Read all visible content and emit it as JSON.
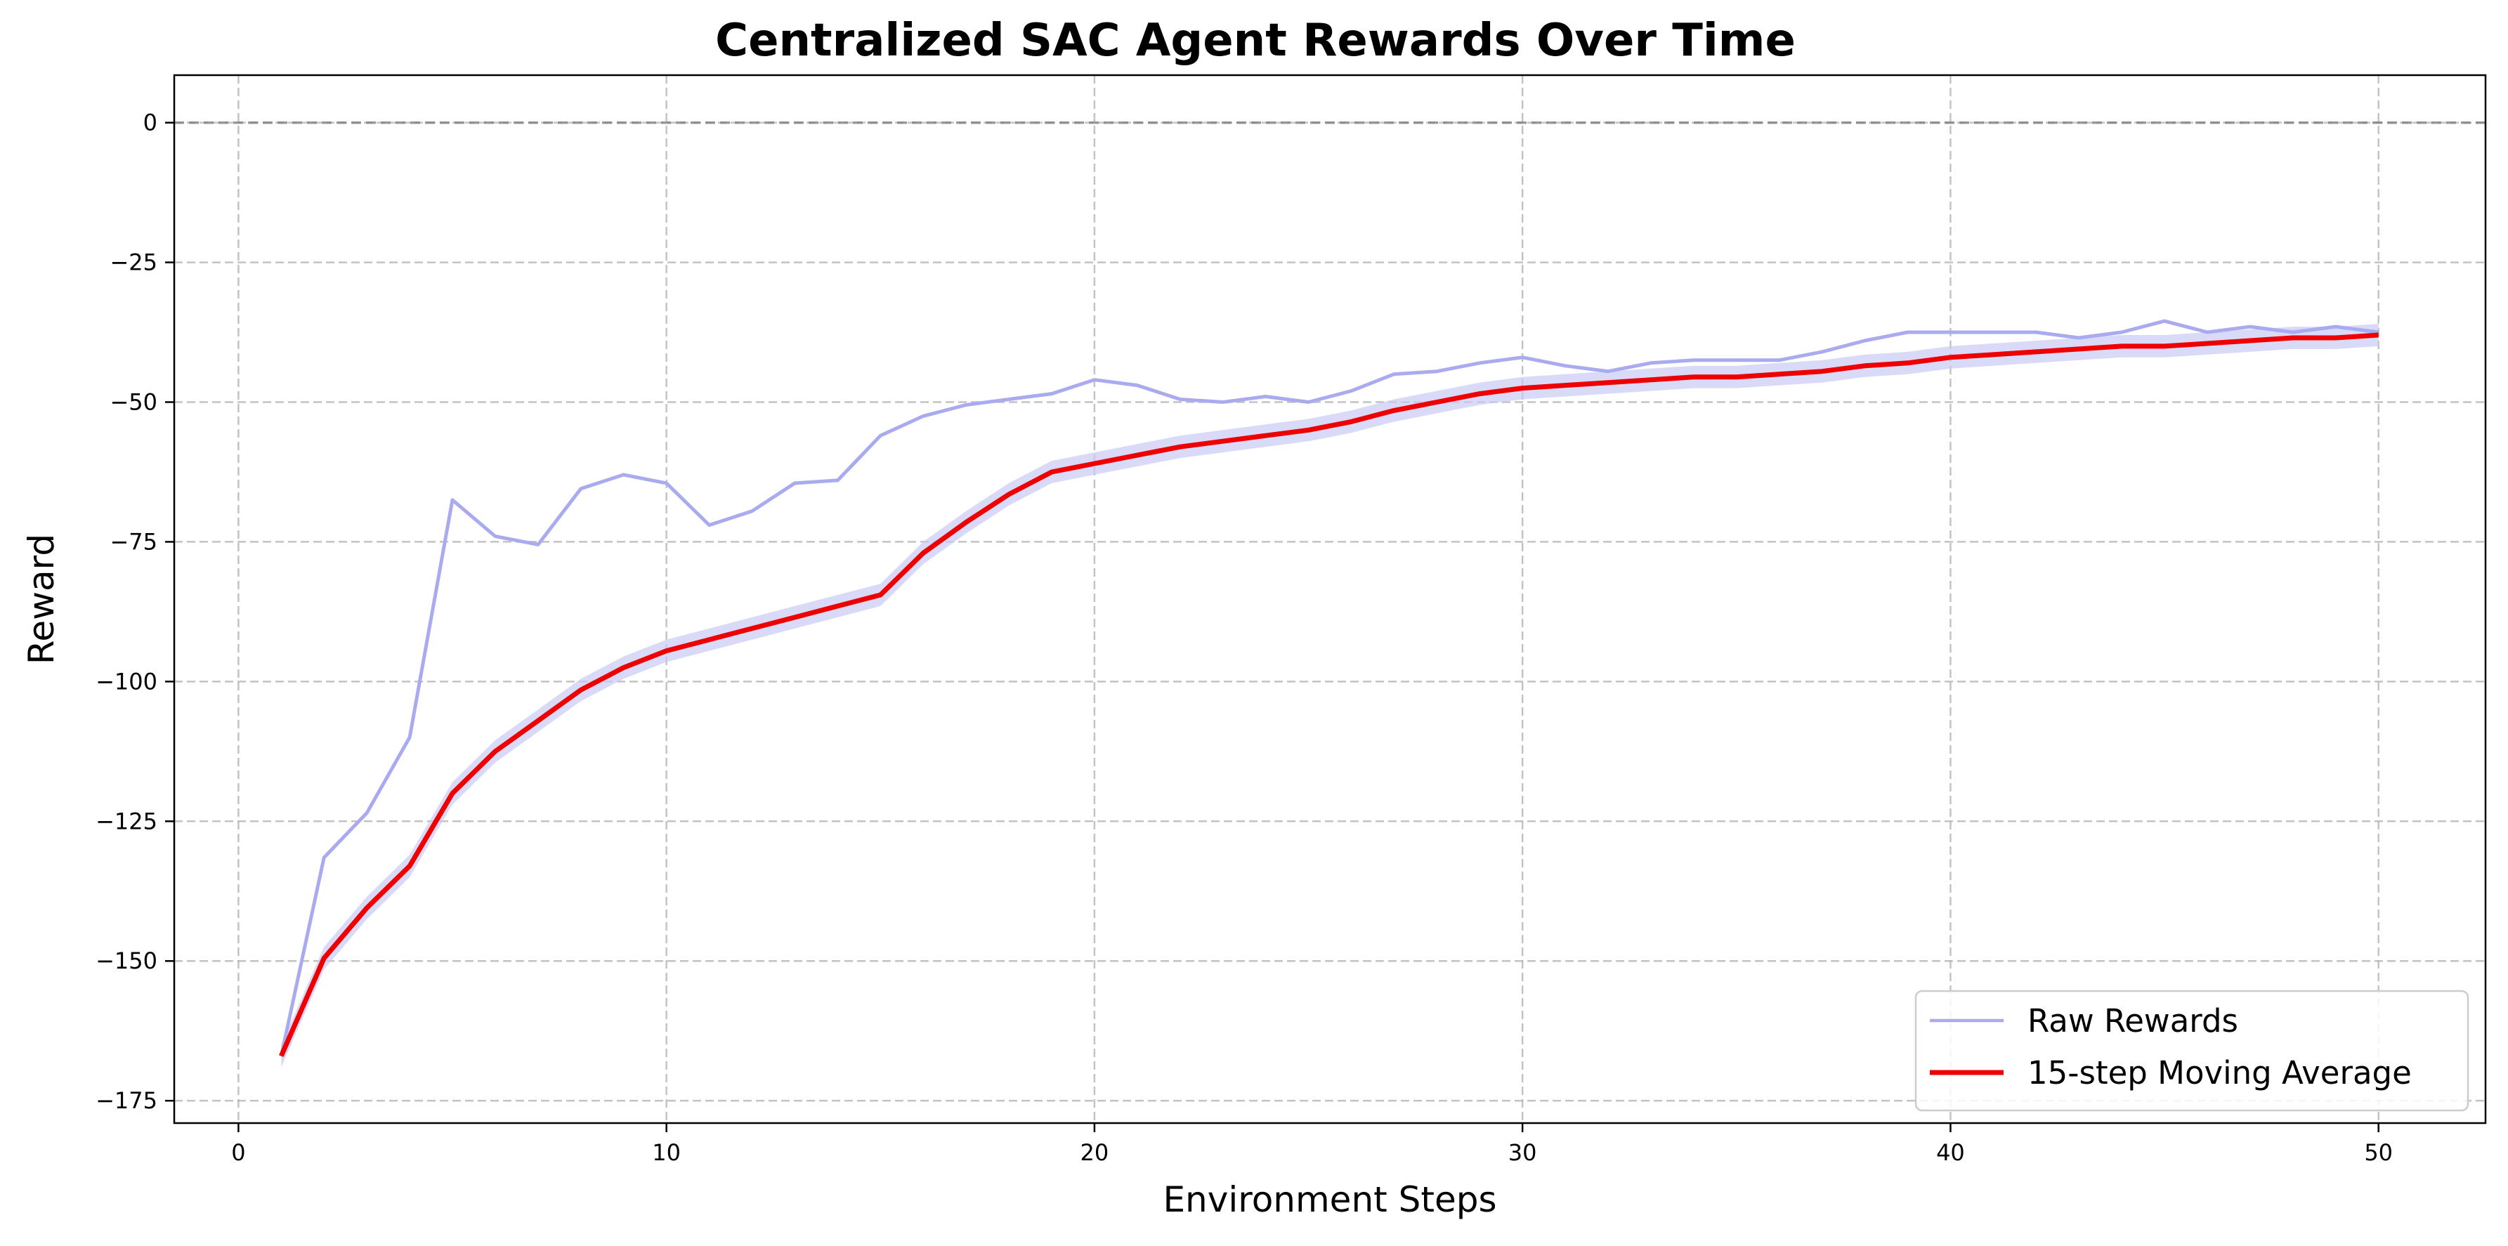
{
  "chart_data": {
    "type": "line",
    "title": "Centralized SAC Agent Rewards Over Time",
    "xlabel": "Environment Steps",
    "ylabel": "Reward",
    "xlim": [
      -1.5,
      52.5
    ],
    "ylim": [
      -179,
      8.5
    ],
    "xticks": [
      0,
      10,
      20,
      30,
      40,
      50
    ],
    "yticks": [
      0,
      -25,
      -50,
      -75,
      -100,
      -125,
      -150,
      -175
    ],
    "ytick_labels": [
      "0",
      "−25",
      "−50",
      "−75",
      "−100",
      "−125",
      "−150",
      "−175"
    ],
    "grid": true,
    "reference_line": {
      "y": 0,
      "style": "dashed",
      "color": "#808080"
    },
    "legend_position": "lower right",
    "x": [
      1,
      2,
      3,
      4,
      5,
      6,
      7,
      8,
      9,
      10,
      11,
      12,
      13,
      14,
      15,
      16,
      17,
      18,
      19,
      20,
      21,
      22,
      23,
      24,
      25,
      26,
      27,
      28,
      29,
      30,
      31,
      32,
      33,
      34,
      35,
      36,
      37,
      38,
      39,
      40,
      41,
      42,
      43,
      44,
      45,
      46,
      47,
      48,
      49,
      50
    ],
    "series": [
      {
        "name": "Raw Rewards",
        "color": "#aaaaf0",
        "values": [
          -167,
          -131.5,
          -123.5,
          -110,
          -67.5,
          -74,
          -75.5,
          -65.5,
          -63,
          -64.5,
          -72,
          -69.5,
          -64.5,
          -64,
          -56,
          -52.5,
          -50.5,
          -49.5,
          -48.5,
          -46,
          -47,
          -49.5,
          -50,
          -49,
          -50,
          -48,
          -45,
          -44.5,
          -43,
          -42,
          -43.5,
          -44.5,
          -43,
          -42.5,
          -42.5,
          -42.5,
          -41,
          -39,
          -37.5,
          -37.5,
          -37.5,
          -37.5,
          -38.5,
          -37.5,
          -35.5,
          -37.5,
          -36.5,
          -37.5,
          -36.5,
          -37.5
        ]
      },
      {
        "name": "15-step Moving Average",
        "color": "#ee0000",
        "values": [
          -167,
          -149.5,
          -140.5,
          -133,
          -120,
          -112.5,
          -107,
          -101.5,
          -97.5,
          -94.5,
          -92.5,
          -90.5,
          -88.5,
          -86.5,
          -84.5,
          -77,
          -71.5,
          -66.5,
          -62.5,
          -61,
          -59.5,
          -58,
          -57,
          -56,
          -55,
          -53.5,
          -51.5,
          -50,
          -48.5,
          -47.5,
          -47,
          -46.5,
          -46,
          -45.5,
          -45.5,
          -45,
          -44.5,
          -43.5,
          -43,
          -42,
          -41.5,
          -41,
          -40.5,
          -40,
          -40,
          -39.5,
          -39,
          -38.5,
          -38.5,
          -38
        ],
        "band": {
          "color": "#c9c9f5",
          "half_width": 2
        }
      }
    ],
    "legend": {
      "raw_label": "Raw Rewards",
      "avg_label": "15-step Moving Average"
    }
  }
}
